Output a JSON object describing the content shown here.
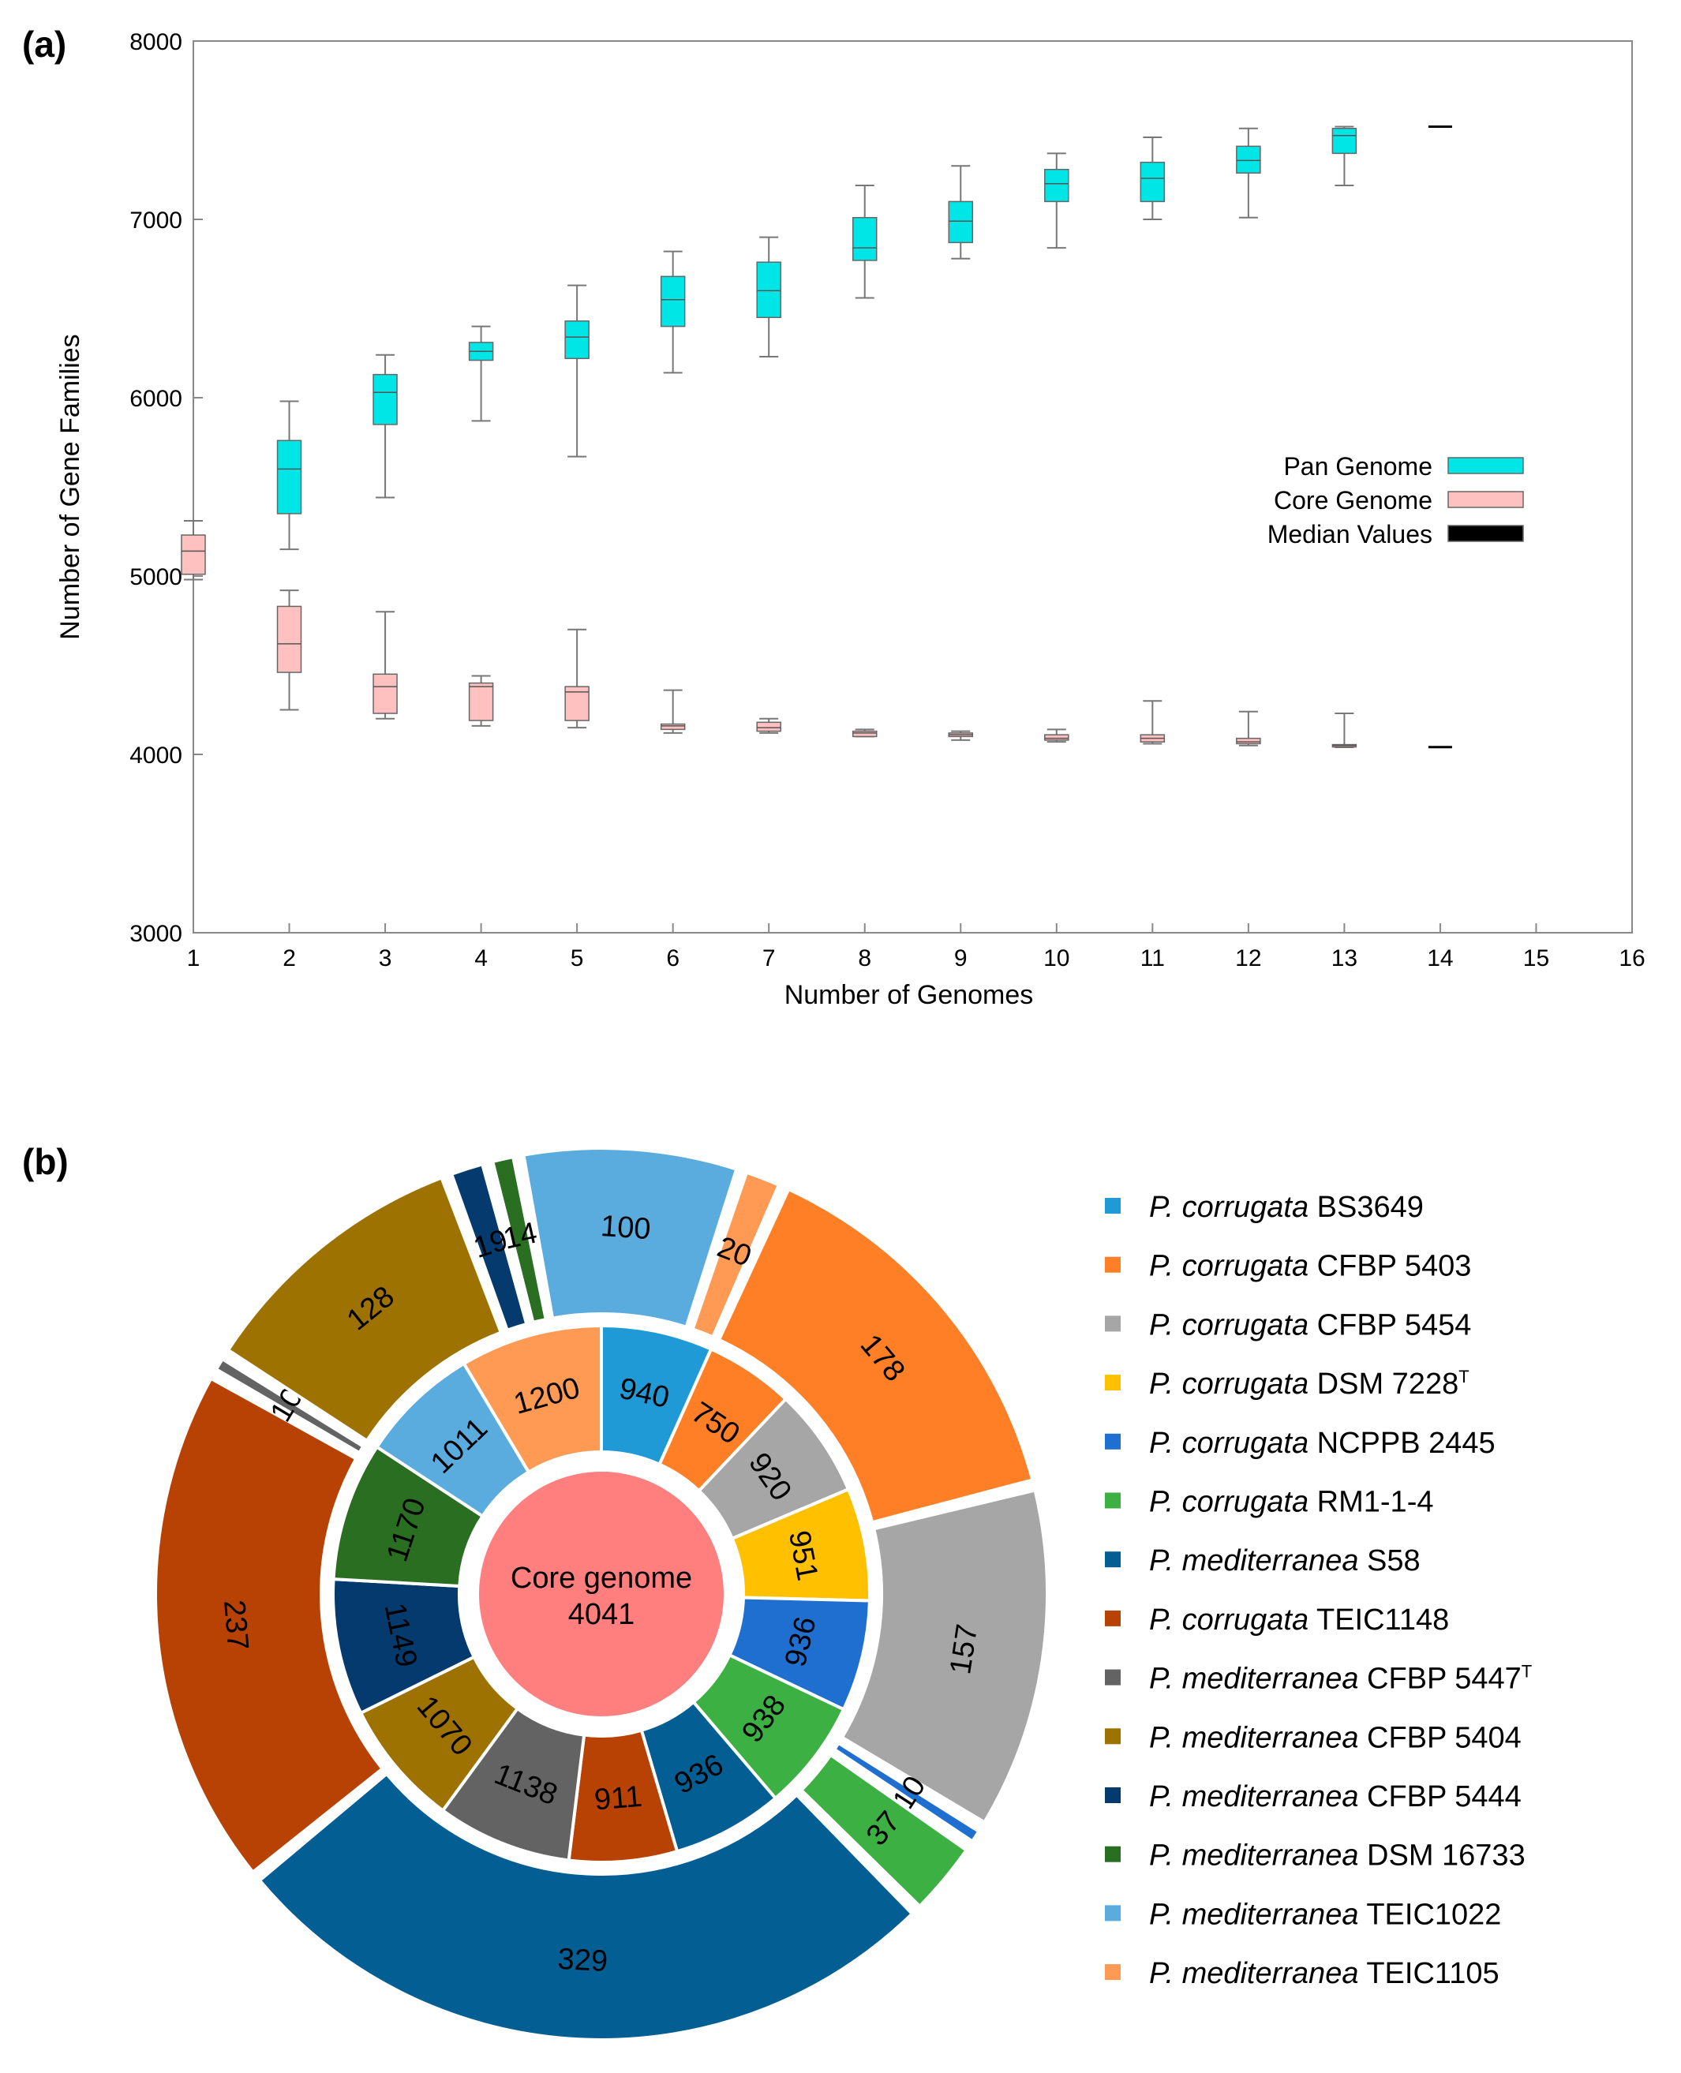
{
  "chart_data": [
    {
      "panel": "(a)",
      "type": "boxplot",
      "xlabel": "Number of Genomes",
      "ylabel": "Number of Gene Families",
      "xlim": [
        1,
        16
      ],
      "ylim": [
        3000,
        8000
      ],
      "xticks": [
        "1",
        "2",
        "3",
        "4",
        "5",
        "6",
        "7",
        "8",
        "9",
        "10",
        "11",
        "12",
        "13",
        "14",
        "15",
        "16"
      ],
      "yticks": [
        "3000",
        "4000",
        "5000",
        "6000",
        "7000",
        "8000"
      ],
      "legend": {
        "position": "right",
        "entries": [
          {
            "label": "Pan Genome",
            "color": "#00e6e6"
          },
          {
            "label": "Core Genome",
            "color": "#ffc0c0"
          },
          {
            "label": "Median Values",
            "color": "#000000"
          }
        ]
      },
      "series": [
        {
          "name": "Pan Genome",
          "color": "#00e6e6",
          "boxes": [
            {
              "x": 2,
              "min": 5150,
              "q1": 5350,
              "median": 5600,
              "q3": 5760,
              "max": 5980
            },
            {
              "x": 3,
              "min": 5440,
              "q1": 5850,
              "median": 6030,
              "q3": 6130,
              "max": 6240
            },
            {
              "x": 4,
              "min": 5870,
              "q1": 6210,
              "median": 6260,
              "q3": 6310,
              "max": 6400
            },
            {
              "x": 5,
              "min": 5670,
              "q1": 6220,
              "median": 6340,
              "q3": 6430,
              "max": 6630
            },
            {
              "x": 6,
              "min": 6140,
              "q1": 6400,
              "median": 6550,
              "q3": 6680,
              "max": 6820
            },
            {
              "x": 7,
              "min": 6230,
              "q1": 6450,
              "median": 6600,
              "q3": 6760,
              "max": 6900
            },
            {
              "x": 8,
              "min": 6560,
              "q1": 6770,
              "median": 6840,
              "q3": 7010,
              "max": 7190
            },
            {
              "x": 9,
              "min": 6780,
              "q1": 6870,
              "median": 6990,
              "q3": 7100,
              "max": 7300
            },
            {
              "x": 10,
              "min": 6840,
              "q1": 7100,
              "median": 7200,
              "q3": 7280,
              "max": 7370
            },
            {
              "x": 11,
              "min": 7000,
              "q1": 7100,
              "median": 7230,
              "q3": 7320,
              "max": 7460
            },
            {
              "x": 12,
              "min": 7010,
              "q1": 7260,
              "median": 7330,
              "q3": 7410,
              "max": 7510
            },
            {
              "x": 13,
              "min": 7190,
              "q1": 7370,
              "median": 7470,
              "q3": 7510,
              "max": 7520
            },
            {
              "x": 14,
              "min": 7520,
              "q1": 7520,
              "median": 7520,
              "q3": 7520,
              "max": 7520
            }
          ]
        },
        {
          "name": "Core Genome",
          "color": "#ffc0c0",
          "boxes": [
            {
              "x": 1,
              "min": 4980,
              "q1": 5010,
              "median": 5140,
              "q3": 5230,
              "max": 5310
            },
            {
              "x": 2,
              "min": 4250,
              "q1": 4460,
              "median": 4620,
              "q3": 4830,
              "max": 4920
            },
            {
              "x": 3,
              "min": 4200,
              "q1": 4230,
              "median": 4380,
              "q3": 4450,
              "max": 4800
            },
            {
              "x": 4,
              "min": 4160,
              "q1": 4190,
              "median": 4380,
              "q3": 4400,
              "max": 4440
            },
            {
              "x": 5,
              "min": 4150,
              "q1": 4190,
              "median": 4350,
              "q3": 4380,
              "max": 4700
            },
            {
              "x": 6,
              "min": 4120,
              "q1": 4140,
              "median": 4160,
              "q3": 4170,
              "max": 4360
            },
            {
              "x": 7,
              "min": 4120,
              "q1": 4130,
              "median": 4150,
              "q3": 4180,
              "max": 4200
            },
            {
              "x": 8,
              "min": 4100,
              "q1": 4100,
              "median": 4120,
              "q3": 4130,
              "max": 4140
            },
            {
              "x": 9,
              "min": 4080,
              "q1": 4100,
              "median": 4110,
              "q3": 4120,
              "max": 4130
            },
            {
              "x": 10,
              "min": 4070,
              "q1": 4080,
              "median": 4090,
              "q3": 4110,
              "max": 4140
            },
            {
              "x": 11,
              "min": 4060,
              "q1": 4070,
              "median": 4090,
              "q3": 4110,
              "max": 4300
            },
            {
              "x": 12,
              "min": 4050,
              "q1": 4060,
              "median": 4070,
              "q3": 4090,
              "max": 4240
            },
            {
              "x": 13,
              "min": 4040,
              "q1": 4045,
              "median": 4050,
              "q3": 4055,
              "max": 4230
            },
            {
              "x": 14,
              "min": 4041,
              "q1": 4041,
              "median": 4041,
              "q3": 4041,
              "max": 4041
            }
          ]
        }
      ]
    },
    {
      "panel": "(b)",
      "type": "pie",
      "center": {
        "line1": "Core genome",
        "line2": "4041",
        "color": "#ff7f7f"
      },
      "strains": [
        {
          "species": "P. corrugata",
          "strain": "BS3649",
          "sup": "",
          "color": "#1f9ad6",
          "inner": 940,
          "outer": null
        },
        {
          "species": "P. corrugata",
          "strain": "CFBP 5403",
          "sup": "",
          "color": "#ff7f27",
          "inner": 750,
          "outer": 178
        },
        {
          "species": "P. corrugata",
          "strain": "CFBP 5454",
          "sup": "",
          "color": "#a6a6a6",
          "inner": 920,
          "outer": 157
        },
        {
          "species": "P. corrugata",
          "strain": "DSM 7228",
          "sup": "T",
          "color": "#ffc000",
          "inner": 951,
          "outer": null
        },
        {
          "species": "P. corrugata",
          "strain": "NCPPB 2445",
          "sup": "",
          "color": "#1f6fd1",
          "inner": 936,
          "outer": 10
        },
        {
          "species": "P. corrugata",
          "strain": "RM1-1-4",
          "sup": "",
          "color": "#3cb043",
          "inner": 938,
          "outer": 37
        },
        {
          "species": "P. mediterranea",
          "strain": "S58",
          "sup": "",
          "color": "#035e94",
          "inner": 936,
          "outer": 329
        },
        {
          "species": "P. corrugata",
          "strain": "TEIC1148",
          "sup": "",
          "color": "#b84203",
          "inner": 911,
          "outer": 237
        },
        {
          "species": "P. mediterranea",
          "strain": "CFBP 5447",
          "sup": "T",
          "color": "#636363",
          "inner": 1138,
          "outer": 10
        },
        {
          "species": "P. mediterranea",
          "strain": "CFBP 5404",
          "sup": "",
          "color": "#9e7200",
          "inner": 1070,
          "outer": 128
        },
        {
          "species": "P. mediterranea",
          "strain": "CFBP 5444",
          "sup": "",
          "color": "#043a6e",
          "inner": 1149,
          "outer": 19
        },
        {
          "species": "P. mediterranea",
          "strain": "DSM 16733",
          "sup": "",
          "color": "#2a6e22",
          "inner": 1170,
          "outer": 14
        },
        {
          "species": "P. mediterranea",
          "strain": "TEIC1022",
          "sup": "",
          "color": "#5aacdf",
          "inner": 1011,
          "outer": 100
        },
        {
          "species": "P. mediterranea",
          "strain": "TEIC1105",
          "sup": "",
          "color": "#ff9a55",
          "inner": 1200,
          "outer": 20
        }
      ]
    }
  ]
}
